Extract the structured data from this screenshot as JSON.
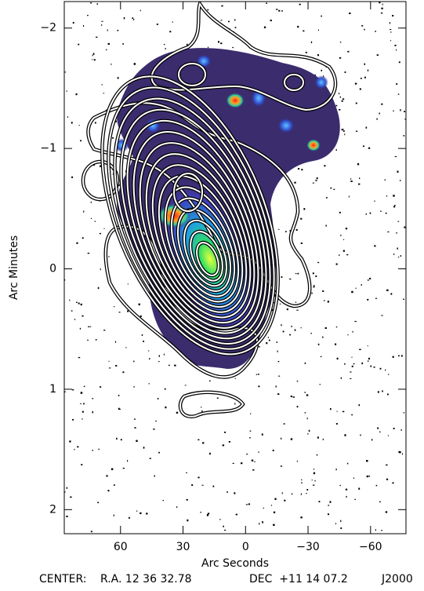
{
  "chart_data": {
    "type": "image",
    "xlabel": "Arc Seconds",
    "ylabel": "Arc Minutes",
    "xlim": [
      87,
      -77
    ],
    "ylim": [
      -2.22,
      2.2
    ],
    "xticks": [
      60,
      30,
      0,
      {
        "value": -30,
        "label": "−30"
      },
      {
        "value": -60,
        "label": "−60"
      }
    ],
    "yticks": [
      {
        "value": -2,
        "label": "−2"
      },
      {
        "value": -1,
        "label": "−1"
      },
      0,
      1,
      2
    ],
    "footer": {
      "center": "CENTER:",
      "ra": "R.A. 12 36 32.78",
      "dec": "DEC  +11 14 07.2",
      "epoch": "J2000"
    }
  }
}
